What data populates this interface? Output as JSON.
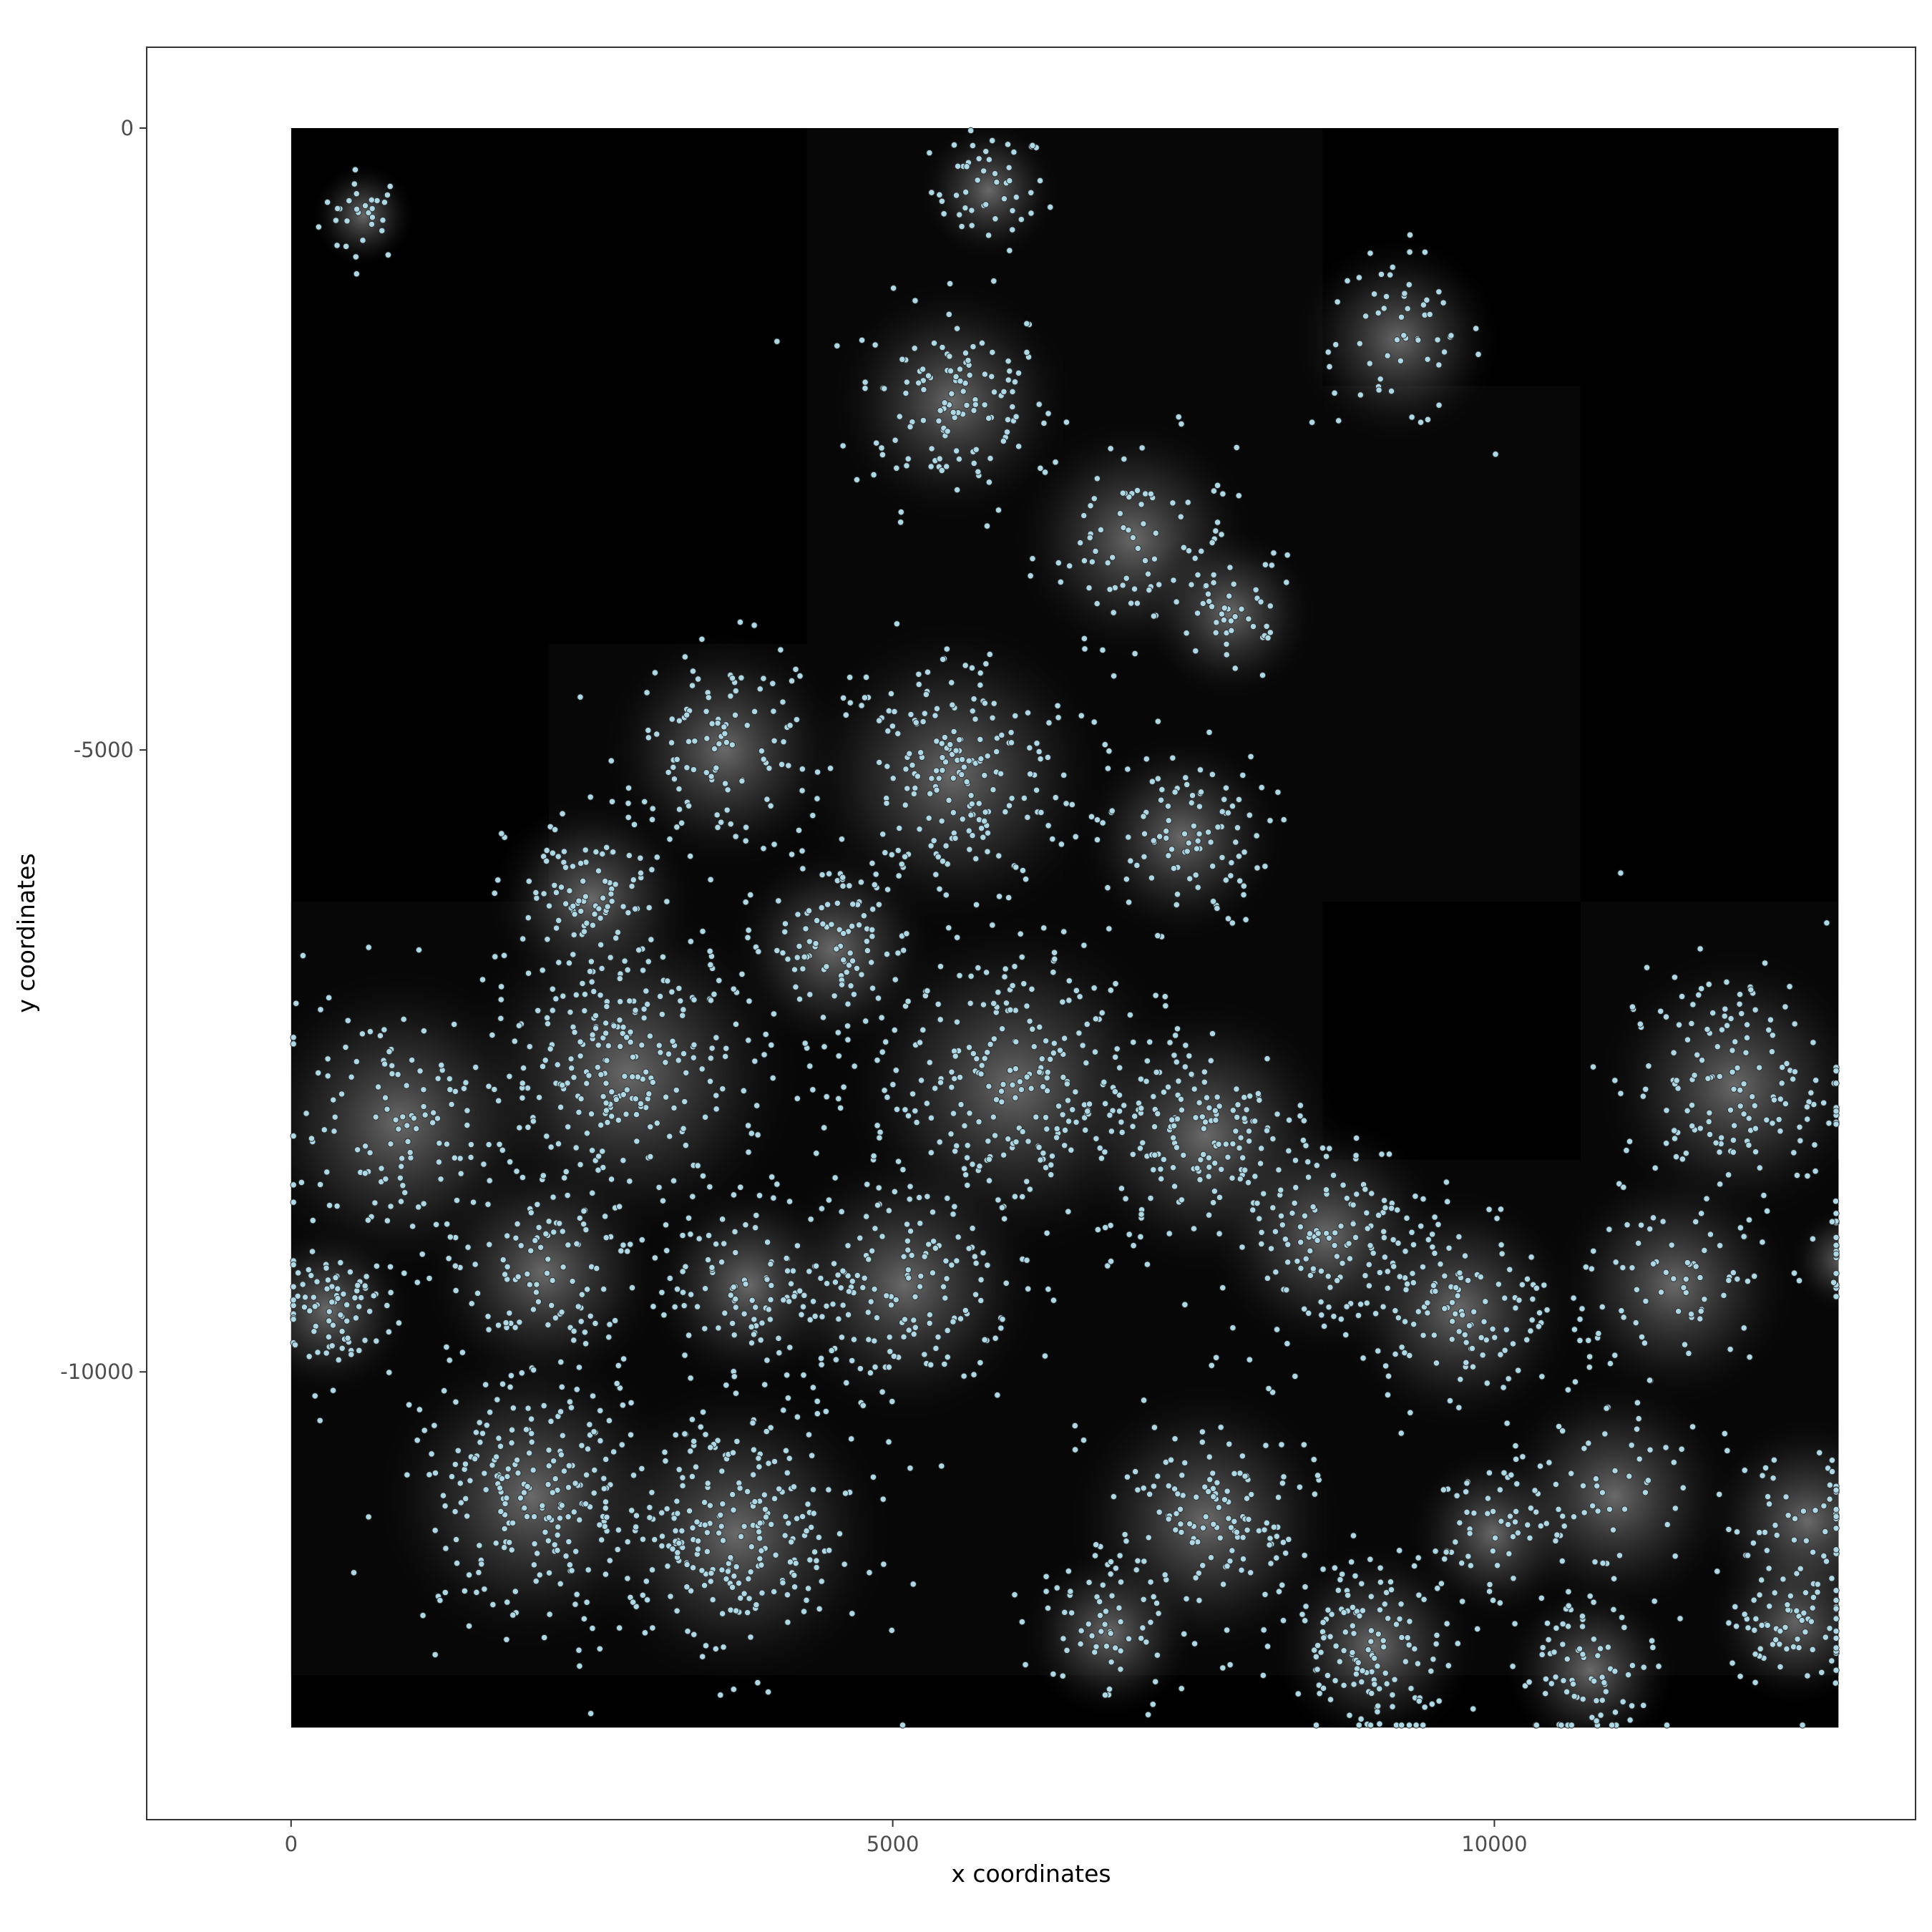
{
  "chart_data": {
    "type": "scatter",
    "title": "",
    "xlabel": "x coordinates",
    "ylabel": "y coordinates",
    "xlim": [
      -1200,
      13500
    ],
    "ylim": [
      -13600,
      650
    ],
    "x_ticks": [
      0,
      5000,
      10000
    ],
    "x_tick_labels": [
      "0",
      "5000",
      "10000"
    ],
    "y_ticks": [
      0,
      -5000,
      -10000
    ],
    "y_tick_labels": [
      "0",
      "-5000",
      "-10000"
    ],
    "grid": false,
    "legend": "none",
    "background_image": {
      "description_color": "#000000",
      "x_range": [
        0,
        12860
      ],
      "y_range": [
        -12860,
        0
      ],
      "tile_size": 2143,
      "bright_tiles": [
        [
          0,
          2
        ],
        [
          0,
          3
        ],
        [
          1,
          2
        ],
        [
          1,
          3
        ],
        [
          1,
          4
        ],
        [
          2,
          1
        ],
        [
          2,
          2
        ],
        [
          2,
          3
        ],
        [
          2,
          4
        ],
        [
          3,
          0
        ],
        [
          3,
          1
        ],
        [
          3,
          2
        ],
        [
          3,
          3
        ],
        [
          3,
          5
        ],
        [
          4,
          0
        ],
        [
          4,
          1
        ],
        [
          4,
          2
        ],
        [
          4,
          3
        ],
        [
          4,
          4
        ],
        [
          4,
          5
        ],
        [
          4,
          6
        ],
        [
          5,
          0
        ],
        [
          5,
          1
        ],
        [
          5,
          2
        ],
        [
          5,
          3
        ],
        [
          5,
          4
        ],
        [
          5,
          5
        ],
        [
          5,
          6
        ]
      ]
    },
    "point_color": "#add8e6",
    "point_edge_color": "#333333",
    "series": [
      {
        "clusters": [
          {
            "x": 600,
            "y": -700,
            "r": 300,
            "n": 30
          },
          {
            "x": 5800,
            "y": -500,
            "r": 400,
            "n": 50
          },
          {
            "x": 5500,
            "y": -2200,
            "r": 700,
            "n": 130
          },
          {
            "x": 7000,
            "y": -3300,
            "r": 700,
            "n": 80
          },
          {
            "x": 9200,
            "y": -1700,
            "r": 600,
            "n": 60
          },
          {
            "x": 7800,
            "y": -3900,
            "r": 500,
            "n": 50
          },
          {
            "x": 3600,
            "y": -5000,
            "r": 700,
            "n": 110
          },
          {
            "x": 5500,
            "y": -5200,
            "r": 900,
            "n": 220
          },
          {
            "x": 7400,
            "y": -5700,
            "r": 600,
            "n": 100
          },
          {
            "x": 2500,
            "y": -6200,
            "r": 600,
            "n": 90
          },
          {
            "x": 4500,
            "y": -6600,
            "r": 600,
            "n": 110
          },
          {
            "x": 2800,
            "y": -7600,
            "r": 1000,
            "n": 280
          },
          {
            "x": 900,
            "y": -8000,
            "r": 900,
            "n": 130
          },
          {
            "x": 6000,
            "y": -7700,
            "r": 1000,
            "n": 260
          },
          {
            "x": 7600,
            "y": -8100,
            "r": 800,
            "n": 160
          },
          {
            "x": 8600,
            "y": -8900,
            "r": 700,
            "n": 130
          },
          {
            "x": 12000,
            "y": -7700,
            "r": 800,
            "n": 160
          },
          {
            "x": 300,
            "y": -9500,
            "r": 500,
            "n": 90
          },
          {
            "x": 2100,
            "y": -9200,
            "r": 700,
            "n": 100
          },
          {
            "x": 3800,
            "y": -9300,
            "r": 600,
            "n": 100
          },
          {
            "x": 5100,
            "y": -9300,
            "r": 800,
            "n": 160
          },
          {
            "x": 9700,
            "y": -9500,
            "r": 700,
            "n": 130
          },
          {
            "x": 11500,
            "y": -9300,
            "r": 700,
            "n": 80
          },
          {
            "x": 12900,
            "y": -9100,
            "r": 300,
            "n": 20
          },
          {
            "x": 2000,
            "y": -11000,
            "r": 900,
            "n": 240
          },
          {
            "x": 3700,
            "y": -11300,
            "r": 900,
            "n": 260
          },
          {
            "x": 7600,
            "y": -11200,
            "r": 800,
            "n": 150
          },
          {
            "x": 10000,
            "y": -11300,
            "r": 500,
            "n": 60
          },
          {
            "x": 11000,
            "y": -11000,
            "r": 700,
            "n": 60
          },
          {
            "x": 9000,
            "y": -12200,
            "r": 600,
            "n": 140
          },
          {
            "x": 10800,
            "y": -12400,
            "r": 500,
            "n": 80
          },
          {
            "x": 12500,
            "y": -12000,
            "r": 500,
            "n": 70
          },
          {
            "x": 6800,
            "y": -12100,
            "r": 500,
            "n": 60
          },
          {
            "x": 12600,
            "y": -11200,
            "r": 600,
            "n": 60
          }
        ]
      }
    ]
  }
}
